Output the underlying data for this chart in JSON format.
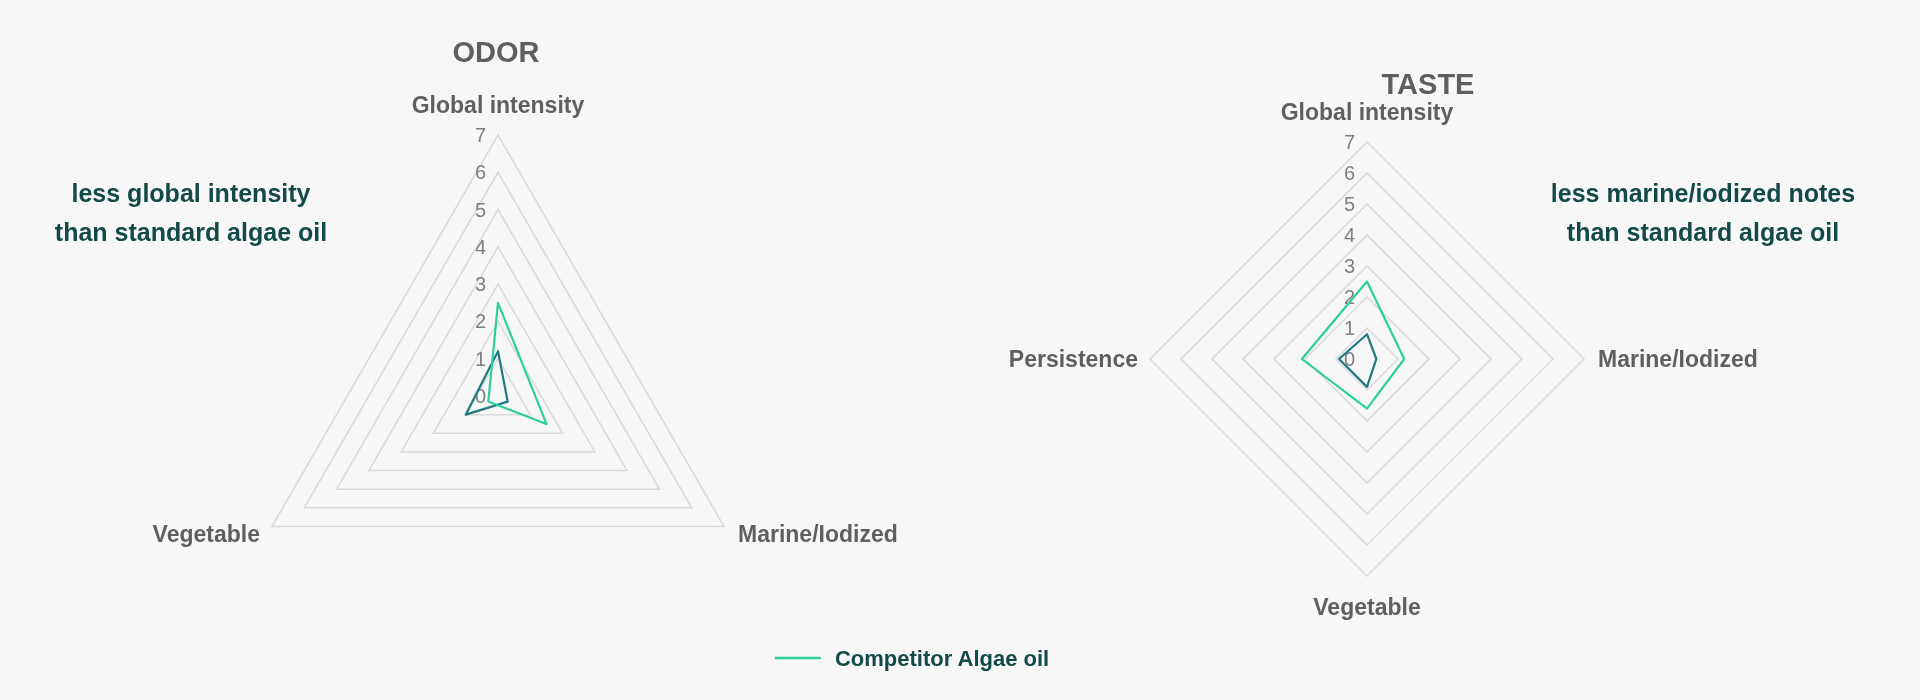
{
  "chart_data": [
    {
      "type": "radar",
      "title": "ODOR",
      "categories": [
        "Global intensity",
        "Marine/Iodized",
        "Vegetable"
      ],
      "series": [
        {
          "color": "#1f7a80",
          "values": [
            1.2,
            0.3,
            1.0
          ]
        },
        {
          "name": "Competitor Algae oil",
          "color": "#2ecf9c",
          "values": [
            2.5,
            1.5,
            0.3
          ]
        }
      ],
      "ylim": [
        0,
        7
      ],
      "yticks": [
        0,
        1,
        2,
        3,
        4,
        5,
        6,
        7
      ],
      "grid": true,
      "legend": "bottom",
      "annotations": [
        "less global intensity than standard algae oil"
      ]
    },
    {
      "type": "radar",
      "title": "TASTE",
      "categories": [
        "Global intensity",
        "Marine/Iodized",
        "Vegetable",
        "Persistence"
      ],
      "series": [
        {
          "color": "#1f7a80",
          "values": [
            0.8,
            0.3,
            0.9,
            0.9
          ]
        },
        {
          "name": "Competitor Algae oil",
          "color": "#2ecf9c",
          "values": [
            2.5,
            1.2,
            1.6,
            2.1
          ]
        }
      ],
      "ylim": [
        0,
        7
      ],
      "yticks": [
        0,
        1,
        2,
        3,
        4,
        5,
        6,
        7
      ],
      "grid": true,
      "legend": "bottom",
      "annotations": [
        "less marine/iodized notes than standard algae oil"
      ]
    }
  ]
}
